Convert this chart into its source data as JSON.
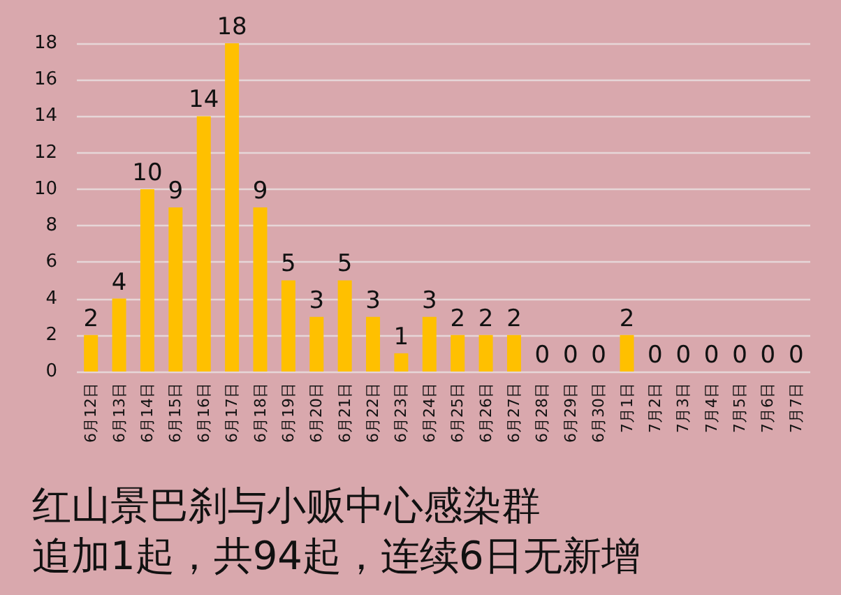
{
  "chart_data": {
    "type": "bar",
    "title": "红山景巴刹与小贩中心感染群",
    "subtitle": "追加1起，共94起，连续6日无新增",
    "categories": [
      "6月12日",
      "6月13日",
      "6月14日",
      "6月15日",
      "6月16日",
      "6月17日",
      "6月18日",
      "6月19日",
      "6月20日",
      "6月21日",
      "6月22日",
      "6月23日",
      "6月24日",
      "6月25日",
      "6月26日",
      "6月27日",
      "6月28日",
      "6月29日",
      "6月30日",
      "7月1日",
      "7月2日",
      "7月3日",
      "7月4日",
      "7月5日",
      "7月6日",
      "7月7日"
    ],
    "values": [
      2,
      4,
      10,
      9,
      14,
      18,
      9,
      5,
      3,
      5,
      3,
      1,
      3,
      2,
      2,
      2,
      0,
      0,
      0,
      2,
      0,
      0,
      0,
      0,
      0,
      0
    ],
    "color": "#ffc000",
    "ylim": [
      0,
      18
    ],
    "yticks": [
      0,
      2,
      4,
      6,
      8,
      10,
      12,
      14,
      16,
      18
    ],
    "grid": "y",
    "data_labels": true
  }
}
